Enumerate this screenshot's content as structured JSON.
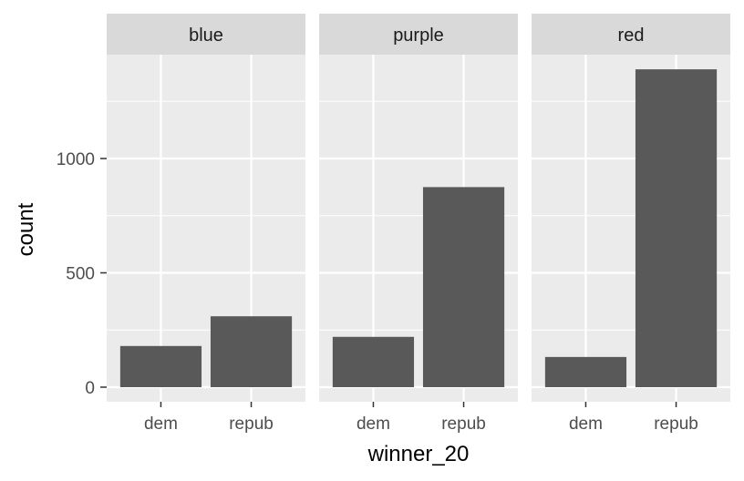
{
  "chart_data": {
    "type": "bar",
    "facet_variable": "",
    "facets": [
      {
        "name": "blue",
        "categories": [
          "dem",
          "repub"
        ],
        "values": [
          180,
          310
        ]
      },
      {
        "name": "purple",
        "categories": [
          "dem",
          "repub"
        ],
        "values": [
          220,
          875
        ]
      },
      {
        "name": "red",
        "categories": [
          "dem",
          "repub"
        ],
        "values": [
          132,
          1390
        ]
      }
    ],
    "title": "",
    "xlabel": "winner_20",
    "ylabel": "count",
    "ylim": [
      0,
      1460
    ],
    "y_ticks": [
      0,
      500,
      1000
    ],
    "grid": true,
    "colors": {
      "bar": "#595959",
      "panel": "#ebebeb",
      "strip": "#d9d9d9",
      "grid": "#ffffff"
    }
  }
}
